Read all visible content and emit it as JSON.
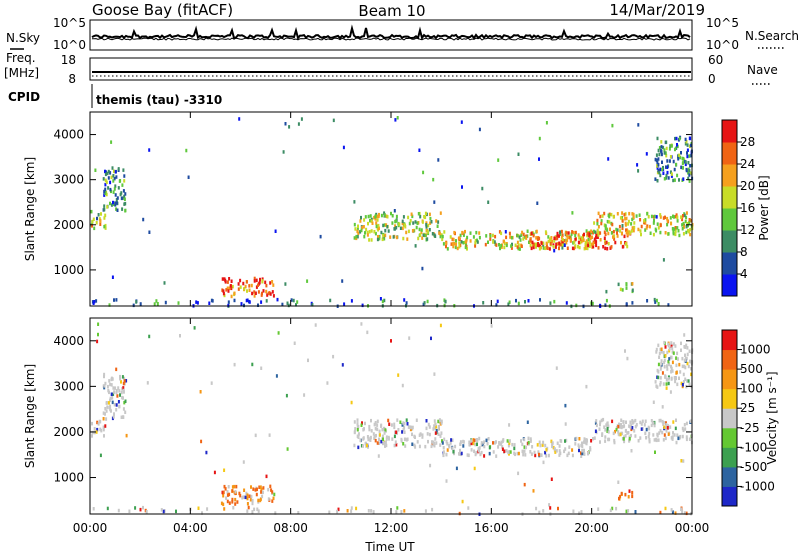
{
  "header": {
    "station": "Goose Bay (fitACF)",
    "beam": "Beam 10",
    "date": "14/Mar/2019"
  },
  "aux_panels": {
    "nsky_label": "N.Sky",
    "nsky_top": "10^5",
    "nsky_bottom": "10^0",
    "nsearch_label": "N.Search",
    "nsearch_top": "10^5",
    "nsearch_bottom": "10^0",
    "freq_label": "Freq.",
    "freq_unit": "[MHz]",
    "freq_top": "18",
    "freq_bottom": "8",
    "nave_label": "Nave",
    "nave_top": "60",
    "nave_bottom": "0",
    "cpid_label": "CPID",
    "cpid_value": "themis (tau) -3310"
  },
  "chart_data": [
    {
      "type": "heatmap",
      "name": "power",
      "ylabel": "Slant Range [km]",
      "yticks": [
        "1000",
        "2000",
        "3000",
        "4000"
      ],
      "ylim": [
        200,
        4500
      ],
      "xlim": [
        0,
        24
      ],
      "colorbar_label": "Power [dB]",
      "colorbar_ticks": [
        "4",
        "8",
        "12",
        "16",
        "20",
        "24",
        "28"
      ],
      "colorbar_colors": [
        "#0a14f0",
        "#1e4ba0",
        "#3c8c64",
        "#5fc83c",
        "#c8dc28",
        "#f5a01e",
        "#f06414",
        "#e61414"
      ],
      "echo_regions": [
        {
          "t0": 0.0,
          "t1": 0.6,
          "r0": 1950,
          "r1": 2300,
          "level": 0.55
        },
        {
          "t0": 0.5,
          "t1": 1.4,
          "r0": 2300,
          "r1": 3300,
          "level": 0.3
        },
        {
          "t0": 5.2,
          "t1": 7.3,
          "r0": 450,
          "r1": 850,
          "level": 0.85
        },
        {
          "t0": 10.5,
          "t1": 14.0,
          "r0": 1700,
          "r1": 2300,
          "level": 0.5
        },
        {
          "t0": 14.0,
          "t1": 20.0,
          "r0": 1500,
          "r1": 1900,
          "level": 0.6
        },
        {
          "t0": 17.5,
          "t1": 21.5,
          "r0": 1500,
          "r1": 1900,
          "level": 0.75
        },
        {
          "t0": 20.0,
          "t1": 24.0,
          "r0": 1800,
          "r1": 2300,
          "level": 0.6
        },
        {
          "t0": 21.0,
          "t1": 21.6,
          "r0": 550,
          "r1": 750,
          "level": 0.4
        },
        {
          "t0": 22.5,
          "t1": 24.0,
          "r0": 3000,
          "r1": 4000,
          "level": 0.3
        }
      ]
    },
    {
      "type": "heatmap",
      "name": "velocity",
      "ylabel": "Slant Range [km]",
      "yticks": [
        "1000",
        "2000",
        "3000",
        "4000"
      ],
      "ylim": [
        200,
        4500
      ],
      "xlim": [
        0,
        24
      ],
      "xlabel": "Time UT",
      "xticks": [
        "00:00",
        "04:00",
        "08:00",
        "12:00",
        "16:00",
        "20:00",
        "00:00"
      ],
      "colorbar_label": "Velocity [m s⁻¹]",
      "colorbar_ticks": [
        "1000",
        "500",
        "100",
        "25",
        "-25",
        "-100",
        "-500",
        "-1000"
      ],
      "colorbar_colors": [
        "#1e28c8",
        "#2d64a0",
        "#3ca050",
        "#64c832",
        "#c8c8c8",
        "#f5c814",
        "#f59614",
        "#f06414",
        "#e61414"
      ],
      "echo_regions": [
        {
          "t0": 0.0,
          "t1": 0.6,
          "r0": 1950,
          "r1": 2300,
          "level": 0.5
        },
        {
          "t0": 0.5,
          "t1": 1.4,
          "r0": 2300,
          "r1": 3300,
          "level": 0.5
        },
        {
          "t0": 5.2,
          "t1": 7.3,
          "r0": 450,
          "r1": 850,
          "level": 0.85
        },
        {
          "t0": 10.5,
          "t1": 14.0,
          "r0": 1700,
          "r1": 2300,
          "level": 0.5
        },
        {
          "t0": 14.0,
          "t1": 20.0,
          "r0": 1500,
          "r1": 1900,
          "level": 0.5
        },
        {
          "t0": 20.0,
          "t1": 24.0,
          "r0": 1800,
          "r1": 2300,
          "level": 0.5
        },
        {
          "t0": 21.0,
          "t1": 21.6,
          "r0": 550,
          "r1": 750,
          "level": 0.8
        },
        {
          "t0": 22.5,
          "t1": 24.0,
          "r0": 3000,
          "r1": 4000,
          "level": 0.5
        }
      ]
    }
  ]
}
